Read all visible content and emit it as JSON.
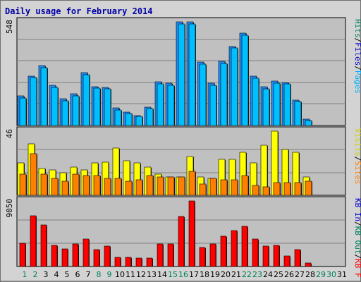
{
  "chart_data": {
    "type": "bar",
    "title": "Daily usage for February 2014",
    "days": [
      "1",
      "2",
      "3",
      "4",
      "5",
      "6",
      "7",
      "8",
      "9",
      "10",
      "11",
      "12",
      "13",
      "14",
      "15",
      "16",
      "17",
      "18",
      "19",
      "20",
      "21",
      "22",
      "23",
      "24",
      "25",
      "26",
      "27",
      "28",
      "29",
      "30",
      "31"
    ],
    "weekend_days": [
      "1",
      "2",
      "8",
      "9",
      "15",
      "16",
      "22",
      "23",
      "29",
      "30"
    ],
    "panels": [
      {
        "id": "top",
        "ymax_label": "548",
        "ymax": 548,
        "legend": [
          {
            "text": "Hits",
            "color": "#00805c"
          },
          {
            "text": "/",
            "color": "#000000"
          },
          {
            "text": "Files",
            "color": "#0000cc"
          },
          {
            "text": "/",
            "color": "#000000"
          },
          {
            "text": "Pages",
            "color": "#00b0ff"
          }
        ],
        "series": [
          {
            "name": "Hits",
            "color": "#1e90ff",
            "values": [
              155,
              262,
              316,
              213,
              140,
              166,
              278,
              206,
              202,
              93,
              69,
              54,
              97,
              231,
              223,
              548,
              548,
              335,
              222,
              339,
              419,
              488,
              261,
              204,
              235,
              229,
              135,
              35,
              0,
              0,
              0
            ]
          },
          {
            "name": "Pages",
            "color": "#00bfff",
            "values": [
              145,
              252,
              306,
              203,
              130,
              156,
              268,
              196,
              192,
              83,
              63,
              48,
              90,
              221,
              213,
              538,
              538,
              325,
              212,
              329,
              409,
              478,
              251,
              194,
              225,
              219,
              125,
              25,
              0,
              0,
              0
            ]
          }
        ]
      },
      {
        "id": "mid",
        "ymax_label": "46",
        "ymax": 46,
        "legend": [
          {
            "text": "Visits",
            "color": "#d0d000"
          },
          {
            "text": "/",
            "color": "#000000"
          },
          {
            "text": "Sites",
            "color": "#ff8000"
          }
        ],
        "series": [
          {
            "name": "Visits",
            "color": "#ffff00",
            "values": [
              23,
              37,
              19,
              18,
              16,
              20,
              18,
              23,
              24,
              34,
              25,
              23,
              20,
              15,
              13,
              13,
              28,
              13,
              12,
              26,
              26,
              31,
              23,
              36,
              46,
              33,
              31,
              13,
              0,
              0,
              0
            ]
          },
          {
            "name": "Sites",
            "color": "#ff8000",
            "values": [
              15,
              30,
              15,
              12,
              10,
              15,
              14,
              14,
              12,
              12,
              10,
              11,
              14,
              13,
              13,
              13,
              17,
              8,
              12,
              11,
              11,
              14,
              7,
              6,
              9,
              9,
              9,
              10,
              0,
              0,
              0
            ]
          }
        ]
      },
      {
        "id": "bot",
        "ymax_label": "9050",
        "ymax": 9050,
        "legend": [
          {
            "text": "KB In",
            "color": "#0000cc"
          },
          {
            "text": "/",
            "color": "#000000"
          },
          {
            "text": "KB Out",
            "color": "#00805c"
          },
          {
            "text": "/",
            "color": "#000000"
          },
          {
            "text": "KB F",
            "color": "#ff0000"
          }
        ],
        "series": [
          {
            "name": "KB F",
            "color": "#ff0000",
            "values": [
              3200,
              7000,
              5700,
              2900,
              2400,
              3100,
              3800,
              2300,
              2800,
              1300,
              1300,
              1200,
              1200,
              3100,
              3100,
              6900,
              9050,
              2600,
              3100,
              4200,
              5000,
              5500,
              3800,
              2800,
              2900,
              1500,
              2300,
              500,
              0,
              0,
              0
            ]
          }
        ]
      }
    ]
  }
}
